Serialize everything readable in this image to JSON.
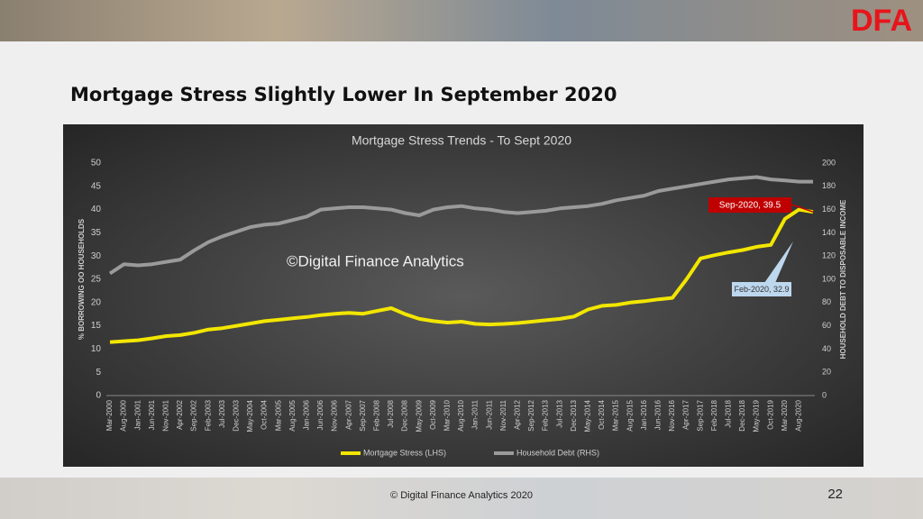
{
  "slide": {
    "logo": "DFA",
    "title": "Mortgage Stress Slightly Lower In September 2020",
    "footer": "© Digital Finance Analytics 2020",
    "page": 22
  },
  "chart_data": {
    "type": "line",
    "title": "Mortgage Stress Trends - To Sept 2020",
    "y_label": "% BORROWING OO HOUSEHOLDS",
    "y2_label": "HOUSEHOLD DEBT TO DISPOSABLE INCOME",
    "watermark": "©Digital Finance Analytics",
    "categories": [
      "Mar-2000",
      "Aug-2000",
      "Jan-2001",
      "Jun-2001",
      "Nov-2001",
      "Apr-2002",
      "Sep-2002",
      "Feb-2003",
      "Jul-2003",
      "Dec-2003",
      "May-2004",
      "Oct-2004",
      "Mar-2005",
      "Aug-2005",
      "Jan-2006",
      "Jun-2006",
      "Nov-2006",
      "Apr-2007",
      "Sep-2007",
      "Feb-2008",
      "Jul-2008",
      "Dec-2008",
      "May-2009",
      "Oct-2009",
      "Mar-2010",
      "Aug-2010",
      "Jan-2011",
      "Jun-2011",
      "Nov-2011",
      "Apr-2012",
      "Sep-2012",
      "Feb-2013",
      "Jul-2013",
      "Dec-2013",
      "May-2014",
      "Oct-2014",
      "Mar-2015",
      "Aug-2015",
      "Jan-2016",
      "Jun-2016",
      "Nov-2016",
      "Apr-2017",
      "Sep-2017",
      "Feb-2018",
      "Jul-2018",
      "Dec-2018",
      "May-2019",
      "Oct-2019",
      "Mar-2020",
      "Aug-2020",
      null
    ],
    "series": [
      {
        "name": "Mortgage Stress (LHS)",
        "color": "#f2e600",
        "axis": "y",
        "values": [
          11.5,
          11.7,
          11.9,
          12.3,
          12.8,
          13.0,
          13.5,
          14.2,
          14.5,
          15.0,
          15.5,
          16.0,
          16.3,
          16.6,
          16.9,
          17.3,
          17.6,
          17.8,
          17.6,
          18.2,
          18.8,
          17.5,
          16.5,
          16.0,
          15.7,
          15.9,
          15.4,
          15.3,
          15.4,
          15.6,
          15.9,
          16.2,
          16.5,
          17.0,
          18.5,
          19.3,
          19.5,
          20.0,
          20.3,
          20.7,
          21.0,
          25.0,
          29.5,
          30.2,
          30.8,
          31.3,
          32.0,
          32.4,
          38.0,
          40.0,
          39.5
        ]
      },
      {
        "name": "Household Debt (RHS)",
        "color": "#9a9a9a",
        "axis": "y2",
        "values": [
          105,
          113,
          112,
          113,
          115,
          117,
          125,
          132,
          137,
          141,
          145,
          147,
          148,
          151,
          154,
          160,
          161,
          162,
          162,
          161,
          160,
          157,
          155,
          160,
          162,
          163,
          161,
          160,
          158,
          157,
          158,
          159,
          161,
          162,
          163,
          165,
          168,
          170,
          172,
          176,
          178,
          180,
          182,
          184,
          186,
          187,
          188,
          186,
          185,
          184,
          184
        ]
      }
    ],
    "ylim": [
      0,
      50
    ],
    "yticks": [
      0,
      5,
      10,
      15,
      20,
      25,
      30,
      35,
      40,
      45,
      50
    ],
    "y2lim": [
      0,
      200
    ],
    "y2ticks": [
      0,
      20,
      40,
      60,
      80,
      100,
      120,
      140,
      160,
      180,
      200
    ],
    "grid": false,
    "legend": "bottom",
    "annotations": [
      {
        "text": "Sep-2020, 39.5"
      },
      {
        "text": "Feb-2020, 32.9"
      }
    ]
  }
}
